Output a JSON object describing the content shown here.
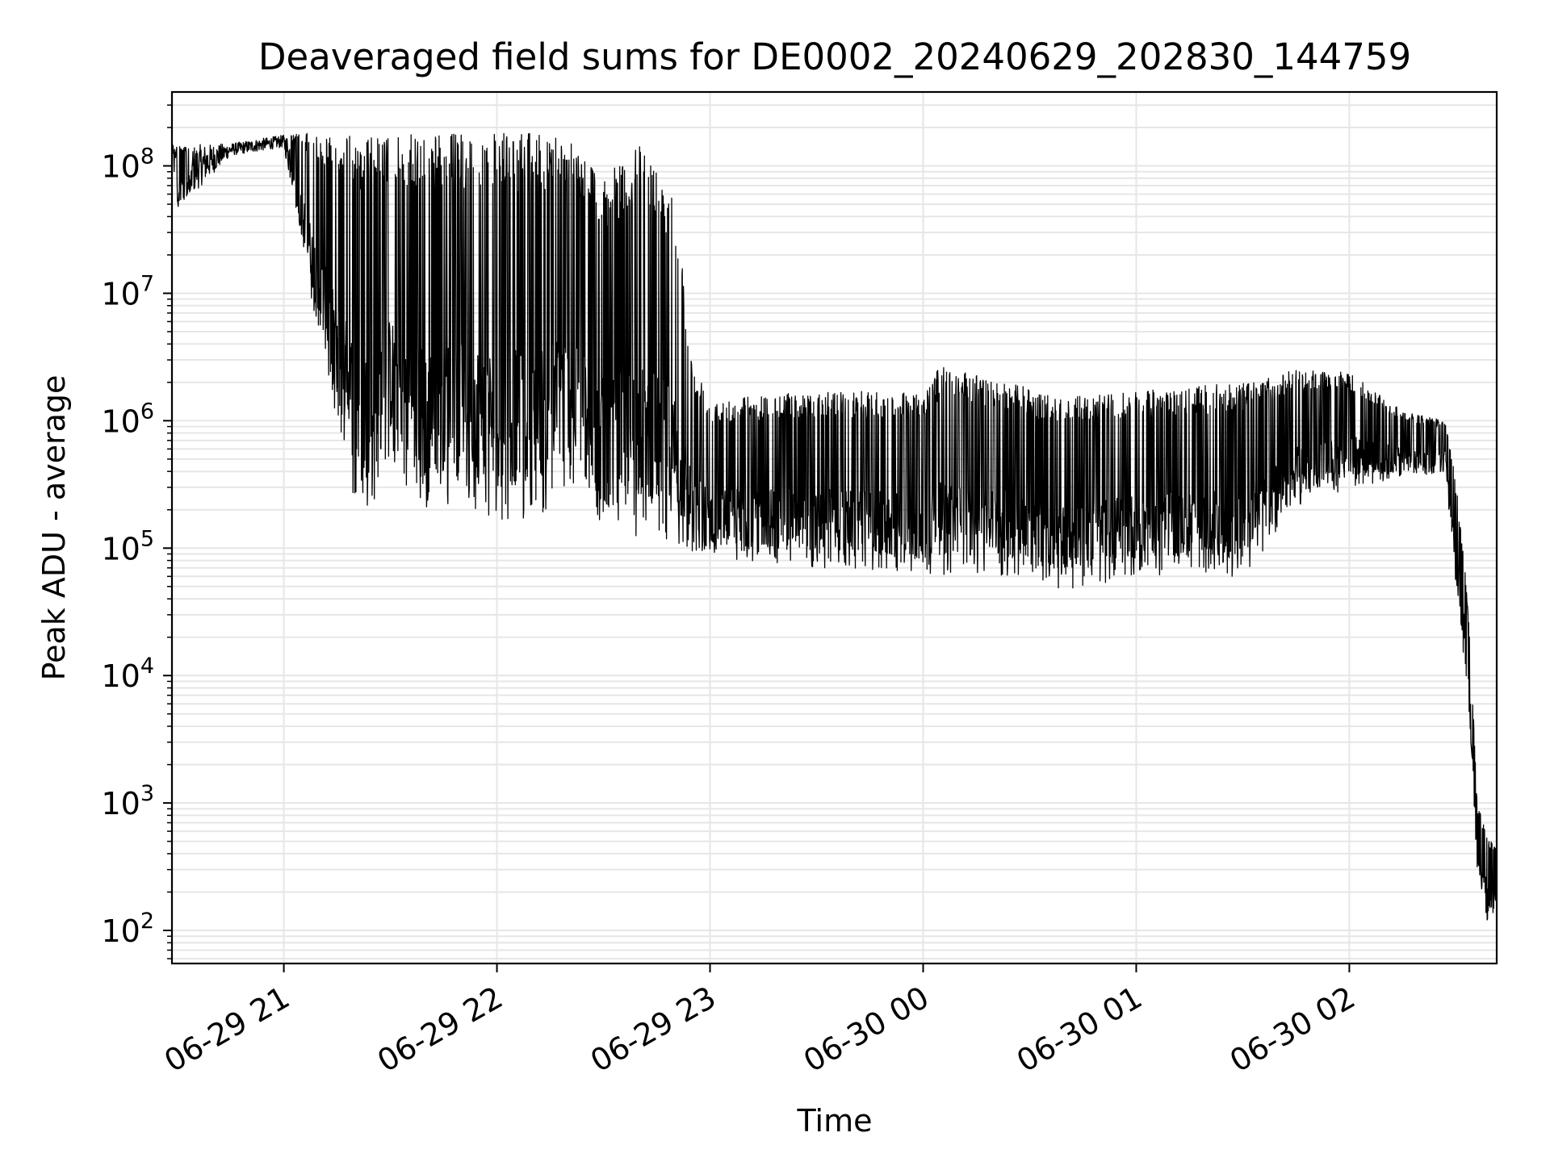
{
  "chart_data": {
    "type": "line",
    "title": "Deaveraged field sums for DE0002_20240629_202830_144759",
    "xlabel": "Time",
    "ylabel": "Peak ADU - average",
    "yscale": "log",
    "ylim": [
      55,
      380000000
    ],
    "xlim": [
      "2024-06-29 20:28:30",
      "2024-06-30 02:41:30"
    ],
    "grid": true,
    "x_ticks": [
      {
        "time": "2024-06-29 21:00",
        "label": "06-29 21"
      },
      {
        "time": "2024-06-29 22:00",
        "label": "06-29 22"
      },
      {
        "time": "2024-06-29 23:00",
        "label": "06-29 23"
      },
      {
        "time": "2024-06-30 00:00",
        "label": "06-30 00"
      },
      {
        "time": "2024-06-30 01:00",
        "label": "06-30 01"
      },
      {
        "time": "2024-06-30 02:00",
        "label": "06-30 02"
      }
    ],
    "y_ticks": [
      {
        "value": 100,
        "base": "10",
        "exp": "2"
      },
      {
        "value": 1000,
        "base": "10",
        "exp": "3"
      },
      {
        "value": 10000,
        "base": "10",
        "exp": "4"
      },
      {
        "value": 100000,
        "base": "10",
        "exp": "5"
      },
      {
        "value": 1000000,
        "base": "10",
        "exp": "6"
      },
      {
        "value": 10000000,
        "base": "10",
        "exp": "7"
      },
      {
        "value": 100000000,
        "base": "10",
        "exp": "8"
      }
    ],
    "line_color": "#000000",
    "grid_color": "#e6e6e6",
    "series": [
      {
        "points": [
          {
            "time": "2024-06-29 20:28:30",
            "upper": 145000000,
            "lower": 125000000
          },
          {
            "time": "2024-06-29 20:30:00",
            "upper": 145000000,
            "lower": 45000000
          },
          {
            "time": "2024-06-29 20:45:00",
            "upper": 150000000,
            "lower": 120000000
          },
          {
            "time": "2024-06-29 21:00:00",
            "upper": 175000000,
            "lower": 140000000
          },
          {
            "time": "2024-06-29 21:05:00",
            "upper": 180000000,
            "lower": 25000000
          },
          {
            "time": "2024-06-29 21:10:00",
            "upper": 180000000,
            "lower": 4000000
          },
          {
            "time": "2024-06-29 21:15:00",
            "upper": 180000000,
            "lower": 800000
          },
          {
            "time": "2024-06-29 21:22:00",
            "upper": 170000000,
            "lower": 140000
          },
          {
            "time": "2024-06-29 21:30:00",
            "upper": 170000000,
            "lower": 450000
          },
          {
            "time": "2024-06-29 21:40:00",
            "upper": 180000000,
            "lower": 170000
          },
          {
            "time": "2024-06-29 21:50:00",
            "upper": 180000000,
            "lower": 250000
          },
          {
            "time": "2024-06-29 22:00:00",
            "upper": 180000000,
            "lower": 150000
          },
          {
            "time": "2024-06-29 22:10:00",
            "upper": 180000000,
            "lower": 150000
          },
          {
            "time": "2024-06-29 22:20:00",
            "upper": 180000000,
            "lower": 300000
          },
          {
            "time": "2024-06-29 22:30:00",
            "upper": 80000000,
            "lower": 110000
          },
          {
            "time": "2024-06-29 22:40:00",
            "upper": 145000000,
            "lower": 120000
          },
          {
            "time": "2024-06-29 22:50:00",
            "upper": 65000000,
            "lower": 100000
          },
          {
            "time": "2024-06-29 22:55:00",
            "upper": 3000000,
            "lower": 90000
          },
          {
            "time": "2024-06-29 23:00:00",
            "upper": 1500000,
            "lower": 80000
          },
          {
            "time": "2024-06-29 23:30:00",
            "upper": 1700000,
            "lower": 70000
          },
          {
            "time": "2024-06-30 00:00:00",
            "upper": 1700000,
            "lower": 60000
          },
          {
            "time": "2024-06-30 00:05:00",
            "upper": 2700000,
            "lower": 60000
          },
          {
            "time": "2024-06-30 00:30:00",
            "upper": 1800000,
            "lower": 60000
          },
          {
            "time": "2024-06-30 00:38:00",
            "upper": 1500000,
            "lower": 45000
          },
          {
            "time": "2024-06-30 01:00:00",
            "upper": 1700000,
            "lower": 60000
          },
          {
            "time": "2024-06-30 01:30:00",
            "upper": 2000000,
            "lower": 60000
          },
          {
            "time": "2024-06-30 01:45:00",
            "upper": 2500000,
            "lower": 200000
          },
          {
            "time": "2024-06-30 02:00:00",
            "upper": 2400000,
            "lower": 300000
          },
          {
            "time": "2024-06-30 02:15:00",
            "upper": 1200000,
            "lower": 350000
          },
          {
            "time": "2024-06-30 02:27:00",
            "upper": 1000000,
            "lower": 400000
          },
          {
            "time": "2024-06-30 02:30:00",
            "upper": 350000,
            "lower": 50000
          },
          {
            "time": "2024-06-30 02:32:00",
            "upper": 120000,
            "lower": 15000
          },
          {
            "time": "2024-06-30 02:34:00",
            "upper": 20000,
            "lower": 3500
          },
          {
            "time": "2024-06-30 02:36:00",
            "upper": 1000,
            "lower": 300
          },
          {
            "time": "2024-06-30 02:39:00",
            "upper": 550,
            "lower": 110
          },
          {
            "time": "2024-06-30 02:41:30",
            "upper": 450,
            "lower": 160
          }
        ]
      }
    ]
  }
}
